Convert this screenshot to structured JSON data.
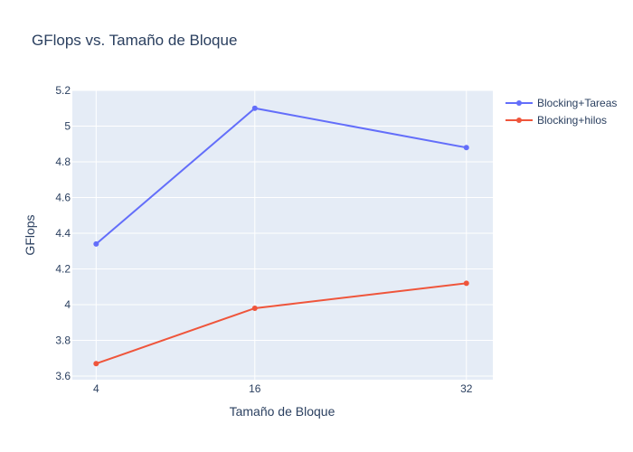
{
  "chart_data": {
    "type": "line",
    "title": "GFlops vs. Tamaño de Bloque",
    "xlabel": "Tamaño de Bloque",
    "ylabel": "GFlops",
    "x": [
      4,
      16,
      32
    ],
    "x_ticks": [
      "4",
      "16",
      "32"
    ],
    "xlim": [
      2.2,
      34.0
    ],
    "ylim": [
      3.58,
      5.2
    ],
    "y_ticks": [
      3.6,
      3.8,
      4,
      4.2,
      4.4,
      4.6,
      4.8,
      5,
      5.2
    ],
    "y_tick_labels": [
      "3.6",
      "3.8",
      "4",
      "4.2",
      "4.4",
      "4.6",
      "4.8",
      "5",
      "5.2"
    ],
    "grid": true,
    "legend_position": "top-right",
    "series": [
      {
        "name": "Blocking+Tareas",
        "color": "#636efa",
        "values": [
          4.34,
          5.1,
          4.88
        ]
      },
      {
        "name": "Blocking+hilos",
        "color": "#ef553b",
        "values": [
          3.67,
          3.98,
          4.12
        ]
      }
    ]
  }
}
